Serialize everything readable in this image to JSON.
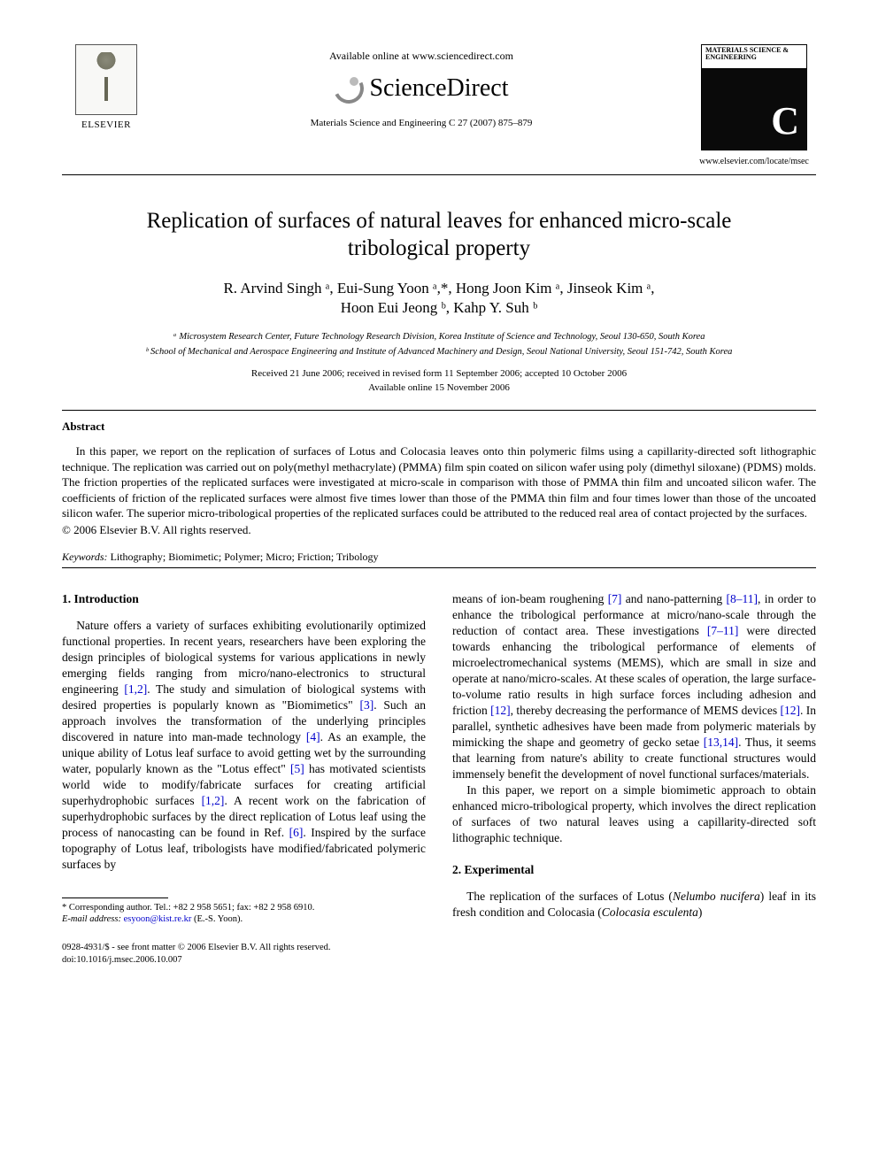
{
  "header": {
    "publisher_name": "ELSEVIER",
    "available_line": "Available online at www.sciencedirect.com",
    "sd_brand": "ScienceDirect",
    "journal_ref": "Materials Science and Engineering C 27 (2007) 875–879",
    "journal_cover_title": "MATERIALS SCIENCE & ENGINEERING",
    "journal_cover_letter": "C",
    "journal_url": "www.elsevier.com/locate/msec"
  },
  "title": "Replication of surfaces of natural leaves for enhanced micro-scale tribological property",
  "authors_line1": "R. Arvind Singh ᵃ, Eui-Sung Yoon ᵃ,*, Hong Joon Kim ᵃ, Jinseok Kim ᵃ,",
  "authors_line2": "Hoon Eui Jeong ᵇ, Kahp Y. Suh ᵇ",
  "affiliations": {
    "a": "ᵃ Microsystem Research Center, Future Technology Research Division, Korea Institute of Science and Technology, Seoul 130-650, South Korea",
    "b": "ᵇ School of Mechanical and Aerospace Engineering and Institute of Advanced Machinery and Design, Seoul National University, Seoul 151-742, South Korea"
  },
  "dates_line1": "Received 21 June 2006; received in revised form 11 September 2006; accepted 10 October 2006",
  "dates_line2": "Available online 15 November 2006",
  "abstract": {
    "label": "Abstract",
    "body": "In this paper, we report on the replication of surfaces of Lotus and Colocasia leaves onto thin polymeric films using a capillarity-directed soft lithographic technique. The replication was carried out on poly(methyl methacrylate) (PMMA) film spin coated on silicon wafer using poly (dimethyl siloxane) (PDMS) molds. The friction properties of the replicated surfaces were investigated at micro-scale in comparison with those of PMMA thin film and uncoated silicon wafer. The coefficients of friction of the replicated surfaces were almost five times lower than those of the PMMA thin film and four times lower than those of the uncoated silicon wafer. The superior micro-tribological properties of the replicated surfaces could be attributed to the reduced real area of contact projected by the surfaces.",
    "copyright": "© 2006 Elsevier B.V. All rights reserved."
  },
  "keywords": {
    "label": "Keywords:",
    "list": "Lithography; Biomimetic; Polymer; Micro; Friction; Tribology"
  },
  "body": {
    "intro_heading": "1. Introduction",
    "intro_p1_a": "Nature offers a variety of surfaces exhibiting evolutionarily optimized functional properties. In recent years, researchers have been exploring the design principles of biological systems for various applications in newly emerging fields ranging from micro/nano-electronics to structural engineering ",
    "ref_1_2_a": "[1,2]",
    "intro_p1_b": ". The study and simulation of biological systems with desired properties is popularly known as \"Biomimetics\" ",
    "ref_3": "[3]",
    "intro_p1_c": ". Such an approach involves the transformation of the underlying principles discovered in nature into man-made technology ",
    "ref_4": "[4]",
    "intro_p1_d": ". As an example, the unique ability of Lotus leaf surface to avoid getting wet by the surrounding water, popularly known as the \"Lotus effect\" ",
    "ref_5": "[5]",
    "intro_p1_e": " has motivated scientists world wide to modify/fabricate surfaces for creating artificial superhydrophobic surfaces ",
    "ref_1_2_b": "[1,2]",
    "intro_p1_f": ". A recent work on the fabrication of superhydrophobic surfaces by the direct replication of Lotus leaf using the process of nanocasting can be found in Ref. ",
    "ref_6": "[6]",
    "intro_p1_g": ". Inspired by the surface topography of Lotus leaf, tribologists have modified/fabricated polymeric surfaces by ",
    "col2_p1_a": "means of ion-beam roughening ",
    "ref_7": "[7]",
    "col2_p1_b": " and nano-patterning ",
    "ref_8_11": "[8–11]",
    "col2_p1_c": ", in order to enhance the tribological performance at micro/nano-scale through the reduction of contact area. These investigations ",
    "ref_7_11": "[7–11]",
    "col2_p1_d": " were directed towards enhancing the tribological performance of elements of microelectromechanical systems (MEMS), which are small in size and operate at nano/micro-scales. At these scales of operation, the large surface-to-volume ratio results in high surface forces including adhesion and friction ",
    "ref_12a": "[12]",
    "col2_p1_e": ", thereby decreasing the performance of MEMS devices ",
    "ref_12b": "[12]",
    "col2_p1_f": ". In parallel, synthetic adhesives have been made from polymeric materials by mimicking the shape and geometry of gecko setae ",
    "ref_13_14": "[13,14]",
    "col2_p1_g": ". Thus, it seems that learning from nature's ability to create functional structures would immensely benefit the development of novel functional surfaces/materials.",
    "col2_p2": "In this paper, we report on a simple biomimetic approach to obtain enhanced micro-tribological property, which involves the direct replication of surfaces of two natural leaves using a capillarity-directed soft lithographic technique.",
    "exp_heading": "2. Experimental",
    "exp_p1_a": "The replication of the surfaces of Lotus (",
    "exp_sp1": "Nelumbo nucifera",
    "exp_p1_b": ") leaf in its fresh condition and Colocasia (",
    "exp_sp2": "Colocasia esculenta",
    "exp_p1_c": ")"
  },
  "footnote": {
    "corr": "* Corresponding author. Tel.: +82 2 958 5651; fax: +82 2 958 6910.",
    "email_label": "E-mail address:",
    "email": "esyoon@kist.re.kr",
    "email_suffix": "(E.-S. Yoon)."
  },
  "bottom": {
    "line1": "0928-4931/$ - see front matter © 2006 Elsevier B.V. All rights reserved.",
    "line2": "doi:10.1016/j.msec.2006.10.007"
  },
  "colors": {
    "link": "#0000cc",
    "text": "#000000",
    "background": "#ffffff"
  }
}
